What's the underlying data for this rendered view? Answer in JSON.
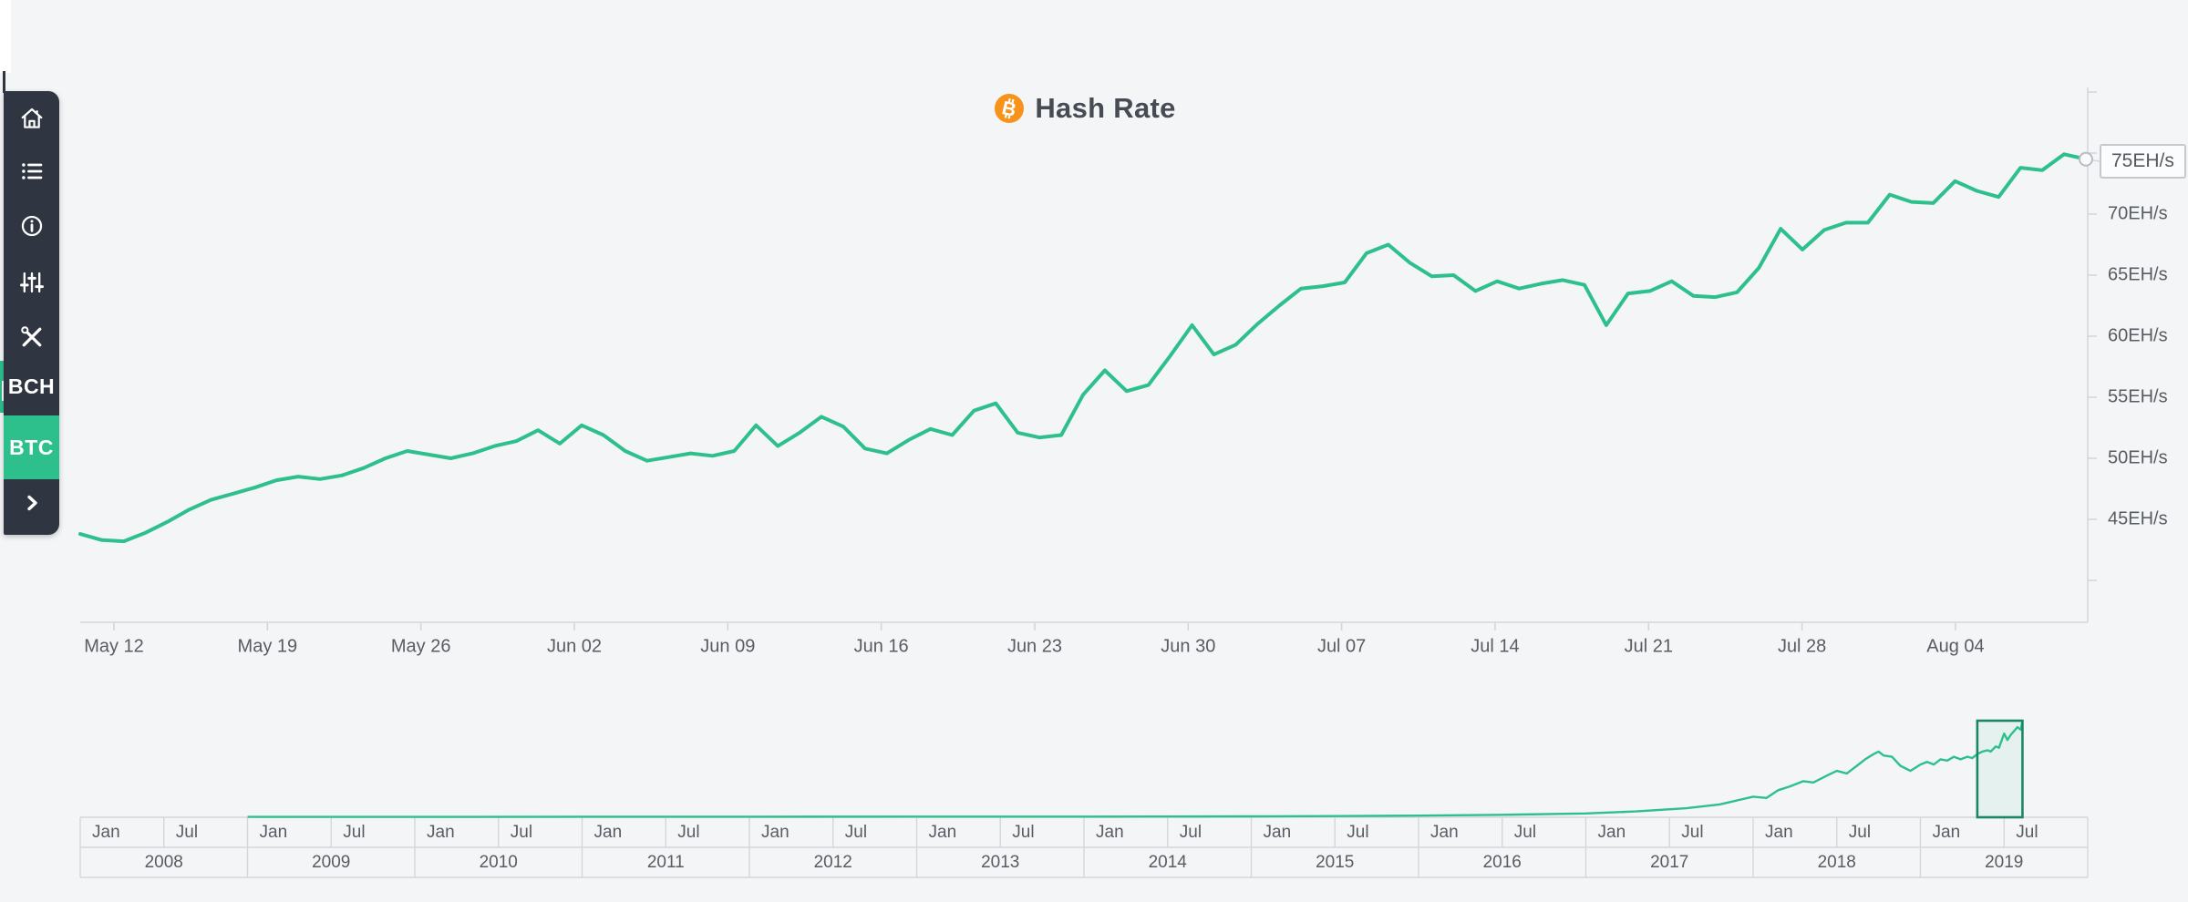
{
  "page": {
    "background_color": "#f4f5f7",
    "accent_green": "#2ec08c"
  },
  "sidebar": {
    "background_color": "#303641",
    "nav_icons": [
      "home-icon",
      "list-icon",
      "info-icon",
      "sliders-icon",
      "tools-icon"
    ],
    "coins": [
      {
        "label": "BCH",
        "active": false
      },
      {
        "label": "BTC",
        "active": true
      }
    ],
    "collapse_chevron": "chevron-right-icon"
  },
  "header": {
    "title": "Hash Rate",
    "icon": "bitcoin-icon",
    "icon_color": "#f7931a"
  },
  "chart_data": [
    {
      "type": "line",
      "title": "Hash Rate",
      "series_name": "BTC Hash Rate",
      "unit": "EH/s",
      "line_color": "#2ec08c",
      "interval": "daily",
      "start_date": "May 10, 2019",
      "end_date": "Aug 10, 2019",
      "values": [
        43.8,
        43.3,
        43.2,
        43.9,
        44.8,
        45.8,
        46.6,
        47.1,
        47.6,
        48.2,
        48.5,
        48.3,
        48.6,
        49.2,
        50.0,
        50.6,
        50.3,
        50.0,
        50.4,
        51.0,
        51.4,
        52.3,
        51.2,
        52.7,
        51.9,
        50.6,
        49.8,
        50.1,
        50.4,
        50.2,
        50.6,
        52.7,
        51.0,
        52.1,
        53.4,
        52.6,
        50.8,
        50.4,
        51.5,
        52.4,
        51.9,
        53.9,
        54.5,
        52.1,
        51.7,
        51.9,
        55.2,
        57.2,
        55.5,
        56.0,
        58.4,
        60.9,
        58.5,
        59.3,
        61.0,
        62.5,
        63.9,
        64.1,
        64.4,
        66.8,
        67.5,
        66.0,
        64.9,
        65.0,
        63.7,
        64.5,
        63.9,
        64.3,
        64.6,
        64.2,
        60.9,
        63.5,
        63.7,
        64.5,
        63.3,
        63.2,
        63.6,
        65.6,
        68.8,
        67.1,
        68.7,
        69.3,
        69.3,
        71.6,
        71.0,
        70.9,
        72.7,
        71.9,
        71.4,
        73.8,
        73.6,
        74.9,
        74.5
      ],
      "x_tick_labels": [
        "May 12",
        "May 19",
        "May 26",
        "Jun 02",
        "Jun 09",
        "Jun 16",
        "Jun 23",
        "Jun 30",
        "Jul 07",
        "Jul 14",
        "Jul 21",
        "Jul 28",
        "Aug 04"
      ],
      "y_tick_labels": [
        "45EH/s",
        "50EH/s",
        "55EH/s",
        "60EH/s",
        "65EH/s",
        "70EH/s",
        "75EH/s"
      ],
      "y_tick_values": [
        45,
        50,
        55,
        60,
        65,
        70,
        75
      ],
      "ylim": [
        37.5,
        80
      ],
      "grid": false,
      "legend": "none",
      "current_value_label": "75EH/s",
      "current_value": 74.5
    },
    {
      "type": "line-navigator",
      "description": "BTC hash rate 2008-2019 range navigator",
      "unit": "EH/s",
      "line_color": "#2ec08c",
      "window_border_color": "#1b8666",
      "years": [
        "2008",
        "2009",
        "2010",
        "2011",
        "2012",
        "2013",
        "2014",
        "2015",
        "2016",
        "2017",
        "2018",
        "2019"
      ],
      "half_year_labels": [
        "Jan",
        "Jul"
      ],
      "points": [
        [
          2009.0,
          0.3
        ],
        [
          2010,
          0.3
        ],
        [
          2011,
          0.4
        ],
        [
          2012,
          0.4
        ],
        [
          2013,
          0.5
        ],
        [
          2014,
          0.5
        ],
        [
          2015,
          0.7
        ],
        [
          2015.5,
          0.9
        ],
        [
          2016,
          1.3
        ],
        [
          2016.5,
          1.9
        ],
        [
          2017,
          3
        ],
        [
          2017.3,
          4.5
        ],
        [
          2017.6,
          7
        ],
        [
          2017.8,
          10
        ],
        [
          2018.0,
          16
        ],
        [
          2018.08,
          15
        ],
        [
          2018.15,
          21
        ],
        [
          2018.22,
          24
        ],
        [
          2018.3,
          28
        ],
        [
          2018.36,
          27
        ],
        [
          2018.45,
          33
        ],
        [
          2018.5,
          36
        ],
        [
          2018.56,
          34
        ],
        [
          2018.62,
          40
        ],
        [
          2018.67,
          45
        ],
        [
          2018.72,
          49
        ],
        [
          2018.75,
          51
        ],
        [
          2018.78,
          48
        ],
        [
          2018.83,
          47
        ],
        [
          2018.88,
          40
        ],
        [
          2018.94,
          36
        ],
        [
          2019.0,
          41
        ],
        [
          2019.04,
          43
        ],
        [
          2019.08,
          41
        ],
        [
          2019.12,
          45
        ],
        [
          2019.16,
          44
        ],
        [
          2019.2,
          47
        ],
        [
          2019.24,
          45
        ],
        [
          2019.28,
          47
        ],
        [
          2019.31,
          46
        ],
        [
          2019.34,
          49
        ],
        [
          2019.37,
          51
        ],
        [
          2019.4,
          52
        ],
        [
          2019.42,
          51
        ],
        [
          2019.45,
          55
        ],
        [
          2019.47,
          54
        ],
        [
          2019.5,
          65
        ],
        [
          2019.52,
          60
        ],
        [
          2019.54,
          64
        ],
        [
          2019.56,
          67
        ],
        [
          2019.58,
          70
        ],
        [
          2019.6,
          68
        ],
        [
          2019.61,
          75
        ]
      ],
      "selected_range_years": [
        2019.34,
        2019.61
      ]
    }
  ]
}
